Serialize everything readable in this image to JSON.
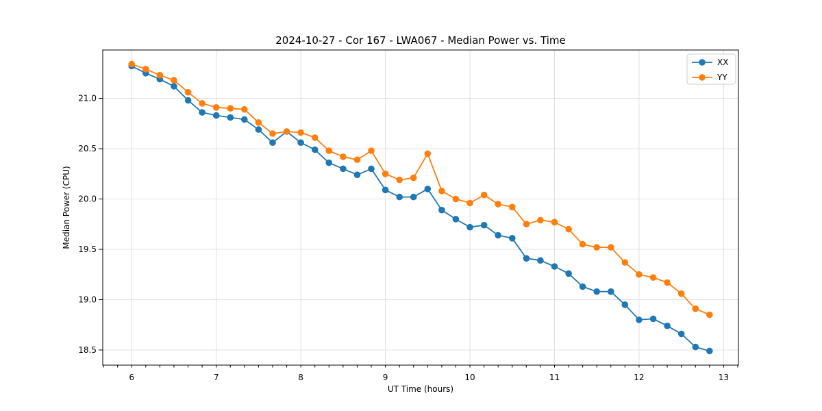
{
  "chart_data": {
    "type": "line",
    "title": "2024-10-27 - Cor 167 - LWA067 - Median Power vs. Time",
    "xlabel": "UT Time (hours)",
    "ylabel": "Median Power (CPU)",
    "xlim": [
      5.658,
      13.175
    ],
    "ylim": [
      18.35,
      21.48
    ],
    "xticks": [
      6,
      7,
      8,
      9,
      10,
      11,
      12,
      13
    ],
    "yticks": [
      18.5,
      19.0,
      19.5,
      20.0,
      20.5,
      21.0
    ],
    "x_minor_step": 0.1666667,
    "grid": true,
    "grid_color": "#e0e0e0",
    "legend_position": "upper right",
    "x": [
      6,
      6.167,
      6.333,
      6.5,
      6.667,
      6.833,
      7,
      7.167,
      7.333,
      7.5,
      7.667,
      7.833,
      8,
      8.167,
      8.333,
      8.5,
      8.667,
      8.833,
      9,
      9.167,
      9.333,
      9.5,
      9.667,
      9.833,
      10,
      10.167,
      10.333,
      10.5,
      10.667,
      10.833,
      11,
      11.167,
      11.333,
      11.5,
      11.667,
      11.833,
      12,
      12.167,
      12.333,
      12.5,
      12.667,
      12.833
    ],
    "series": [
      {
        "name": "XX",
        "color": "#1f77b4",
        "values": [
          21.32,
          21.25,
          21.19,
          21.12,
          20.98,
          20.86,
          20.83,
          20.81,
          20.79,
          20.69,
          20.56,
          20.67,
          20.56,
          20.49,
          20.36,
          20.3,
          20.24,
          20.3,
          20.09,
          20.02,
          20.02,
          20.1,
          19.89,
          19.8,
          19.72,
          19.74,
          19.64,
          19.61,
          19.41,
          19.39,
          19.33,
          19.26,
          19.13,
          19.08,
          19.08,
          18.95,
          18.8,
          18.81,
          18.74,
          18.66,
          18.53,
          18.49
        ]
      },
      {
        "name": "YY",
        "color": "#ff7f0e",
        "values": [
          21.34,
          21.29,
          21.23,
          21.18,
          21.06,
          20.95,
          20.91,
          20.9,
          20.89,
          20.76,
          20.65,
          20.67,
          20.66,
          20.61,
          20.48,
          20.42,
          20.39,
          20.48,
          20.25,
          20.19,
          20.21,
          20.45,
          20.08,
          20.0,
          19.96,
          20.04,
          19.95,
          19.92,
          19.75,
          19.79,
          19.77,
          19.7,
          19.55,
          19.52,
          19.52,
          19.37,
          19.25,
          19.22,
          19.17,
          19.06,
          18.91,
          18.85
        ]
      }
    ]
  }
}
